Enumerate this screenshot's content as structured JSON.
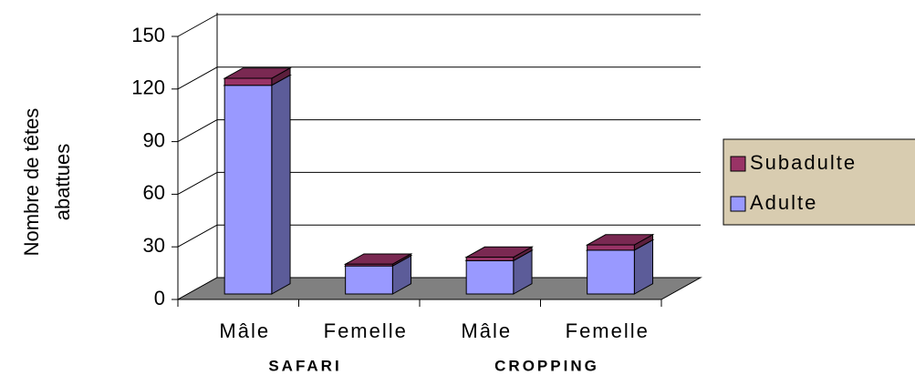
{
  "chart_data": {
    "type": "bar3d_stacked",
    "y_label": "Nombre de têtes abattues",
    "categories": [
      "Mâle",
      "Femelle",
      "Mâle",
      "Femelle"
    ],
    "groups": [
      "SAFARI",
      "CROPPING"
    ],
    "series": [
      {
        "name": "Adulte",
        "color": "#9999ff",
        "values": [
          119,
          16,
          19,
          25
        ]
      },
      {
        "name": "Subadulte",
        "color": "#993366",
        "values": [
          4,
          1,
          2,
          3
        ]
      }
    ],
    "ylim": [
      0,
      150
    ],
    "yticks": [
      0,
      30,
      60,
      90,
      120,
      150
    ],
    "grid": true,
    "legend": "right",
    "floor_color": "#808080",
    "legend_background": "#d8ccb0"
  }
}
